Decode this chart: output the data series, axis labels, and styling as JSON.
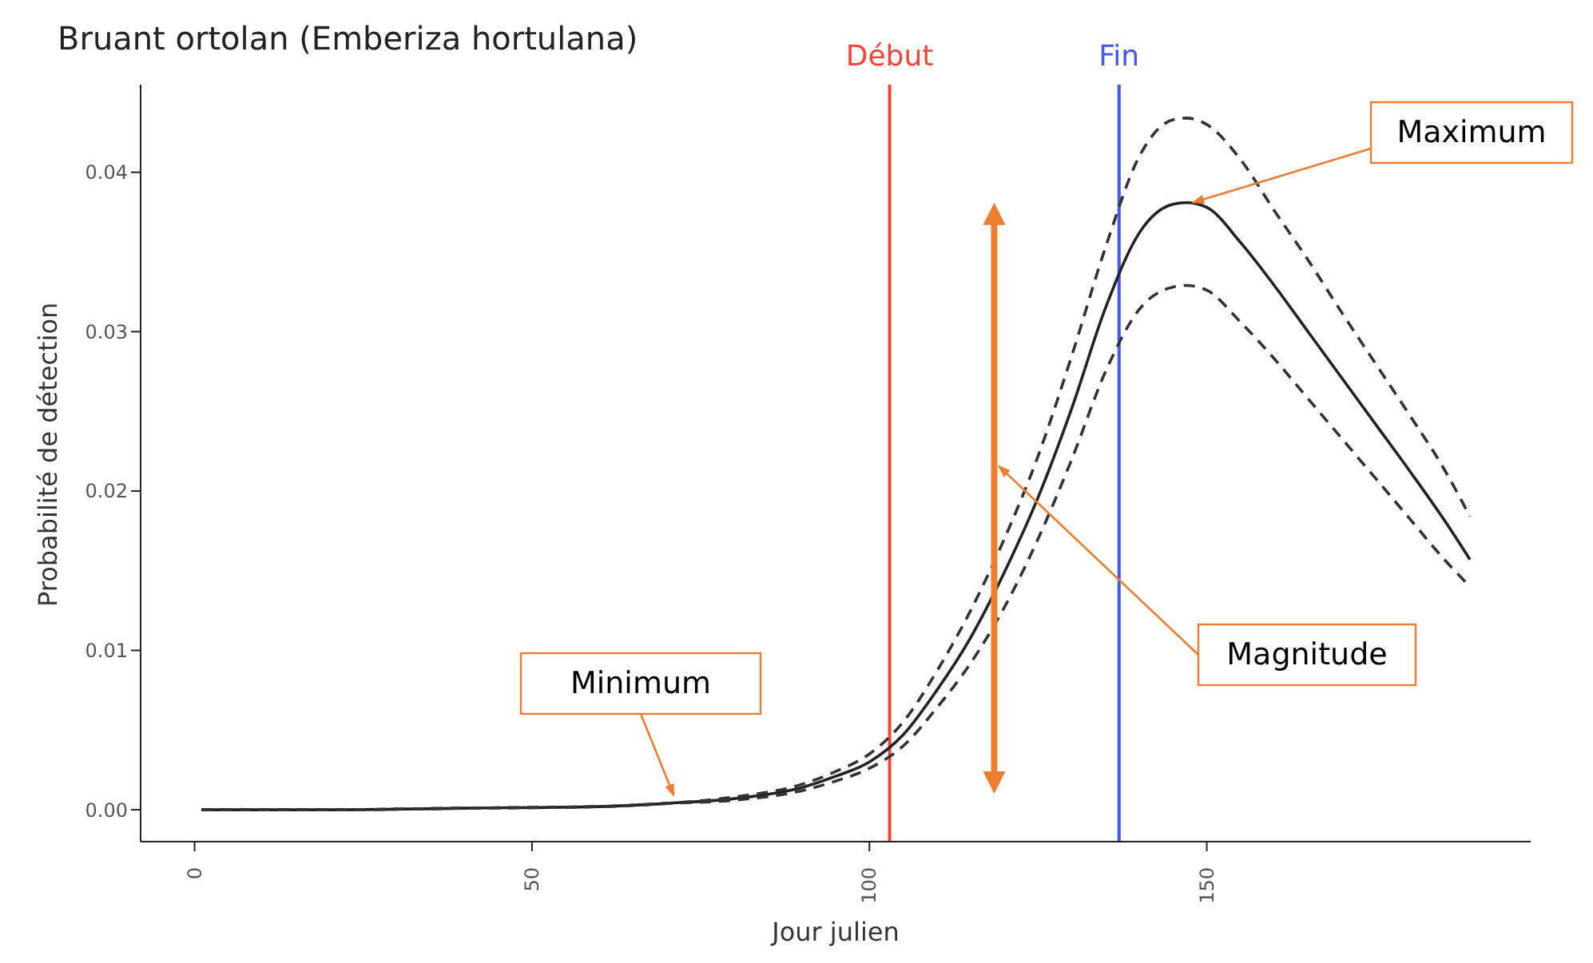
{
  "chart_data": {
    "type": "line",
    "title": "Bruant ortolan (Emberiza hortulana)",
    "xlabel": "Jour julien",
    "ylabel": "Probabilité de détection",
    "x": [
      1,
      20,
      40,
      60,
      70,
      80,
      90,
      95,
      100,
      105,
      110,
      115,
      120,
      125,
      130,
      135,
      140,
      145,
      147,
      150,
      155,
      160,
      165,
      170,
      175,
      180,
      185,
      189
    ],
    "series": [
      {
        "color": "#222222",
        "line_style": "solid",
        "values": [
          0,
          0,
          0.0001,
          0.0002,
          0.0004,
          0.0007,
          0.0014,
          0.0021,
          0.003,
          0.0047,
          0.0075,
          0.0108,
          0.0149,
          0.0196,
          0.0252,
          0.0315,
          0.0362,
          0.038,
          0.0381,
          0.0378,
          0.0356,
          0.0329,
          0.03,
          0.0271,
          0.0242,
          0.0213,
          0.0183,
          0.0157
        ]
      },
      {
        "color": "#333333",
        "line_style": "dashed",
        "values": [
          0,
          0,
          0.0001,
          0.0002,
          0.0004,
          0.0008,
          0.0016,
          0.0024,
          0.0035,
          0.0055,
          0.0087,
          0.0125,
          0.017,
          0.0222,
          0.0285,
          0.0353,
          0.041,
          0.0433,
          0.0434,
          0.043,
          0.0408,
          0.0376,
          0.0345,
          0.0312,
          0.028,
          0.0248,
          0.0215,
          0.0184
        ]
      },
      {
        "color": "#333333",
        "line_style": "dashed",
        "values": [
          0,
          0,
          0.0001,
          0.0002,
          0.0004,
          0.0006,
          0.0012,
          0.0018,
          0.0026,
          0.004,
          0.0064,
          0.0092,
          0.0127,
          0.017,
          0.022,
          0.0275,
          0.0314,
          0.0328,
          0.0329,
          0.0326,
          0.0306,
          0.0283,
          0.0258,
          0.0233,
          0.0208,
          0.0183,
          0.0158,
          0.014
        ]
      }
    ],
    "xlim": [
      -8,
      198
    ],
    "xticks": [
      0,
      50,
      100,
      150
    ],
    "ylim": [
      -0.002,
      0.0455
    ],
    "yticks": [
      {
        "value": 0,
        "label": "0.00"
      },
      {
        "value": 0.01,
        "label": "0.01"
      },
      {
        "value": 0.02,
        "label": "0.02"
      },
      {
        "value": 0.03,
        "label": "0.03"
      },
      {
        "value": 0.04,
        "label": "0.04"
      }
    ],
    "marker": "none",
    "ref_lines": [
      {
        "axis": "x",
        "value": 103,
        "label": "Début",
        "color": "#f8433b"
      },
      {
        "axis": "x",
        "value": 137,
        "label": "Fin",
        "color": "#4456ee"
      }
    ],
    "annotations": [
      {
        "text": "Minimum",
        "x": 71,
        "y": 0.0001
      },
      {
        "text": "Maximum",
        "x": 147,
        "y": 0.0381
      },
      "Magnitude"
    ]
  }
}
